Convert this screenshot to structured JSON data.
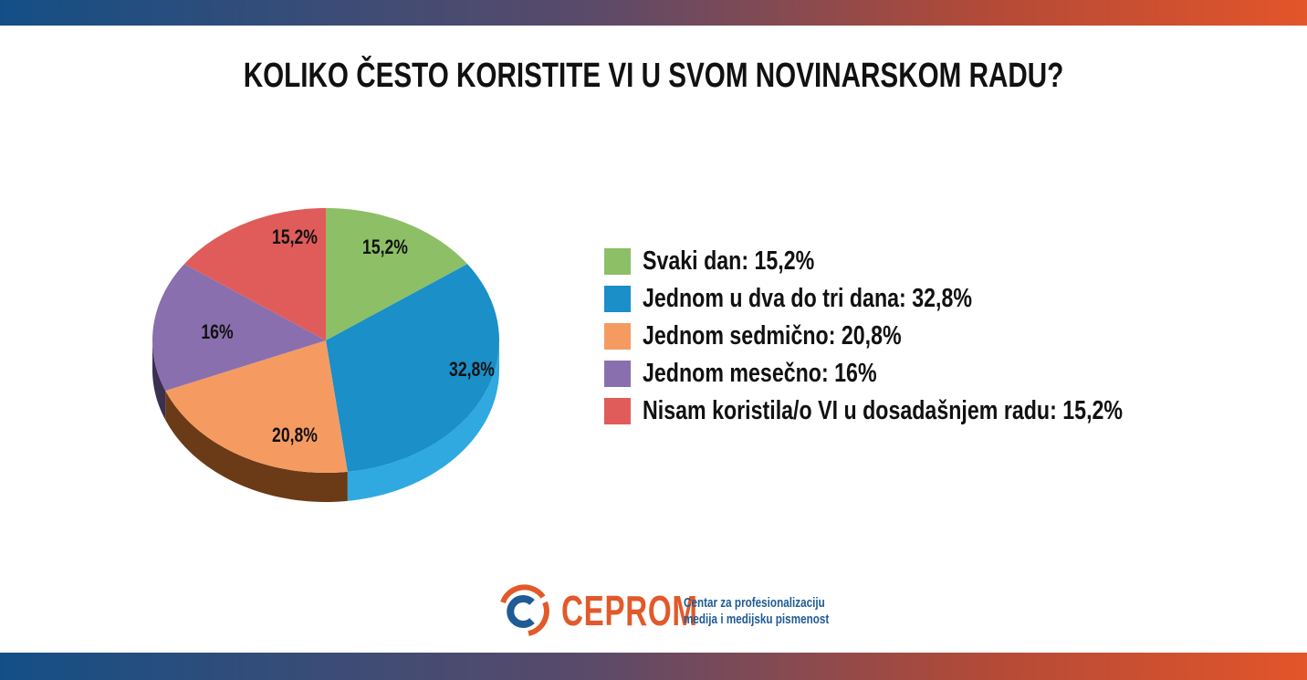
{
  "chart_data": {
    "type": "pie",
    "style": "3d",
    "title": "KOLIKO ČESTO KORISTITE VI U SVOM NOVINARSKOM RADU?",
    "legend_position": "right",
    "slices": [
      {
        "label": "Svaki dan",
        "value": 15.2,
        "data_label": "15,2%",
        "legend": "Svaki dan: 15,2%",
        "color": "#8dbf67",
        "side": "#5f8a42"
      },
      {
        "label": "Jednom u dva do tri dana",
        "value": 32.8,
        "data_label": "32,8%",
        "legend": "Jednom u dva do tri dana: 32,8%",
        "color": "#1a8fc8",
        "side": "#2fa9e0"
      },
      {
        "label": "Jednom sedmično",
        "value": 20.8,
        "data_label": "20,8%",
        "legend": "Jednom sedmično: 20,8%",
        "color": "#f59b62",
        "side": "#6b3a16"
      },
      {
        "label": "Jednom mesečno",
        "value": 16,
        "data_label": "16%",
        "legend": "Jednom mesečno: 16%",
        "color": "#8a6fae",
        "side": "#3b3050"
      },
      {
        "label": "Nisam koristila/o VI u dosadašnjem radu",
        "value": 15.2,
        "data_label": "15,2%",
        "legend": "Nisam koristila/o VI u dosadašnjem radu: 15,2%",
        "color": "#e05c5a",
        "side": "#8a2f2e"
      }
    ]
  },
  "logo": {
    "name": "CEPROM",
    "tagline_line1": "Centar za profesionalizaciju",
    "tagline_line2": "medija i medijsku pismenost",
    "colors": {
      "orange": "#e2592a",
      "blue": "#1f5b95"
    }
  }
}
